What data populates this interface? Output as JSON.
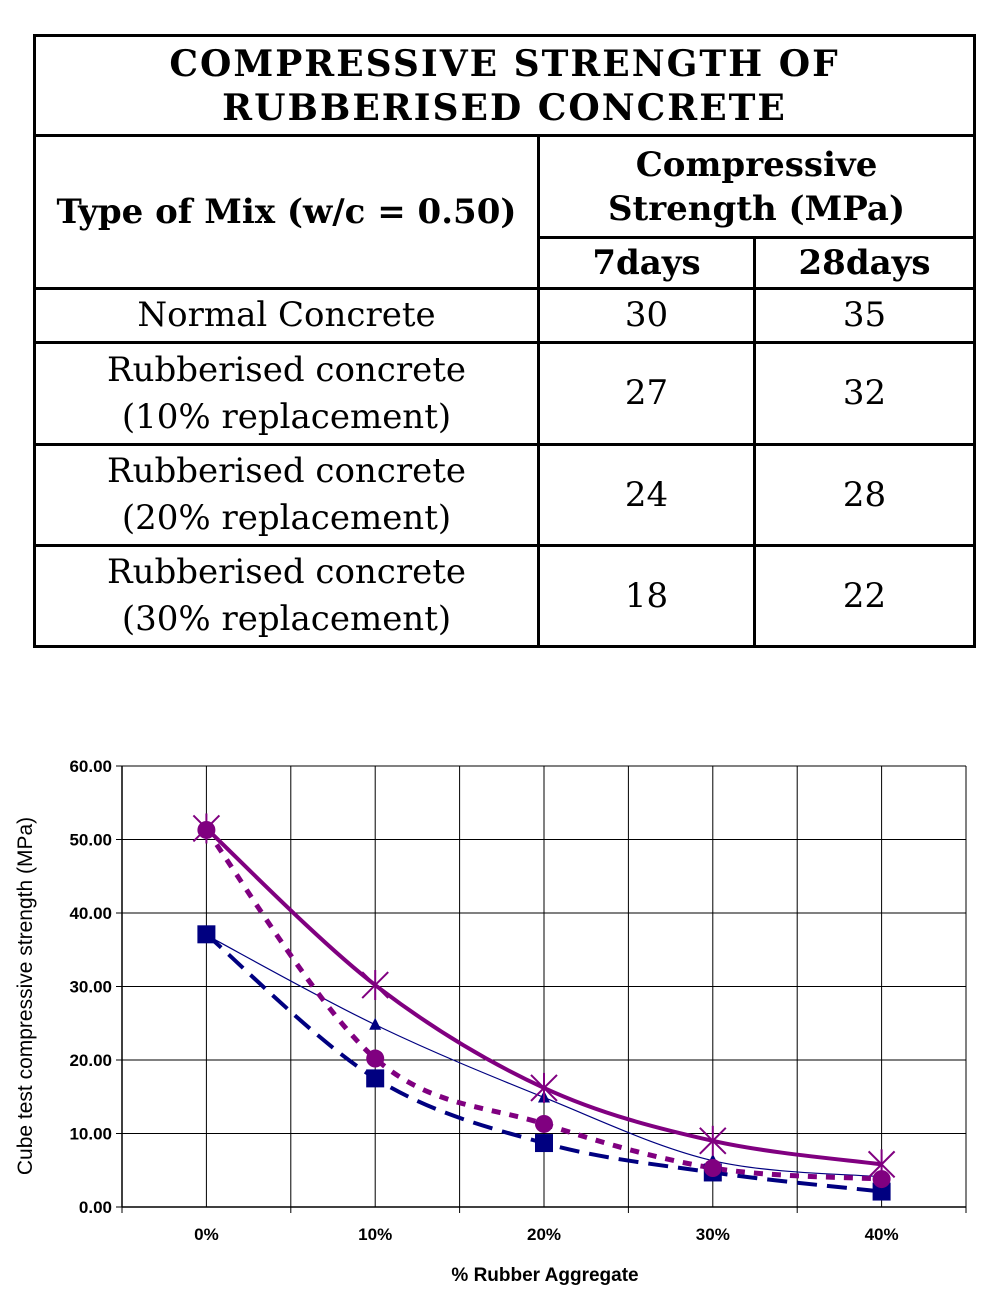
{
  "table": {
    "title_line1": "COMPRESSIVE STRENGTH OF",
    "title_line2": "RUBBERISED CONCRETE",
    "col_mix": "Type of Mix (w/c = 0.50)",
    "col_strength_line1": "Compressive",
    "col_strength_line2": "Strength (MPa)",
    "col_7days": "7days",
    "col_28days": "28days",
    "rows": [
      {
        "line1": "Normal Concrete",
        "line2": "",
        "d7": "30",
        "d28": "35"
      },
      {
        "line1": "Rubberised concrete",
        "line2": "(10% replacement)",
        "d7": "27",
        "d28": "32"
      },
      {
        "line1": "Rubberised concrete",
        "line2": "(20% replacement)",
        "d7": "24",
        "d28": "28"
      },
      {
        "line1": "Rubberised concrete",
        "line2": "(30% replacement)",
        "d7": "18",
        "d28": "22"
      }
    ]
  },
  "chart_data": {
    "type": "line",
    "title": "",
    "xlabel": "% Rubber Aggregate",
    "ylabel": "Cube test compressive strength (MPa)",
    "categories": [
      "0%",
      "10%",
      "20%",
      "30%",
      "40%"
    ],
    "ylim": [
      0,
      60
    ],
    "yticks": [
      "0.00",
      "10.00",
      "20.00",
      "30.00",
      "40.00",
      "50.00",
      "60.00"
    ],
    "grid": true,
    "legend": "none",
    "series": [
      {
        "marker": "square",
        "color": "#000080",
        "dash": "dashed",
        "width": 4,
        "values": [
          37.1,
          17.5,
          8.7,
          4.7,
          2.1
        ]
      },
      {
        "marker": "triangle",
        "color": "#000080",
        "dash": "solid",
        "width": 1.2,
        "values": [
          37.0,
          24.8,
          14.9,
          6.3,
          4.1
        ]
      },
      {
        "marker": "circle",
        "color": "#800080",
        "dash": "dotted",
        "width": 5,
        "values": [
          51.3,
          20.2,
          11.3,
          5.3,
          3.8
        ]
      },
      {
        "marker": "star",
        "color": "#800080",
        "dash": "solid",
        "width": 4,
        "values": [
          51.5,
          30.2,
          16.2,
          9.0,
          5.8
        ]
      }
    ]
  }
}
